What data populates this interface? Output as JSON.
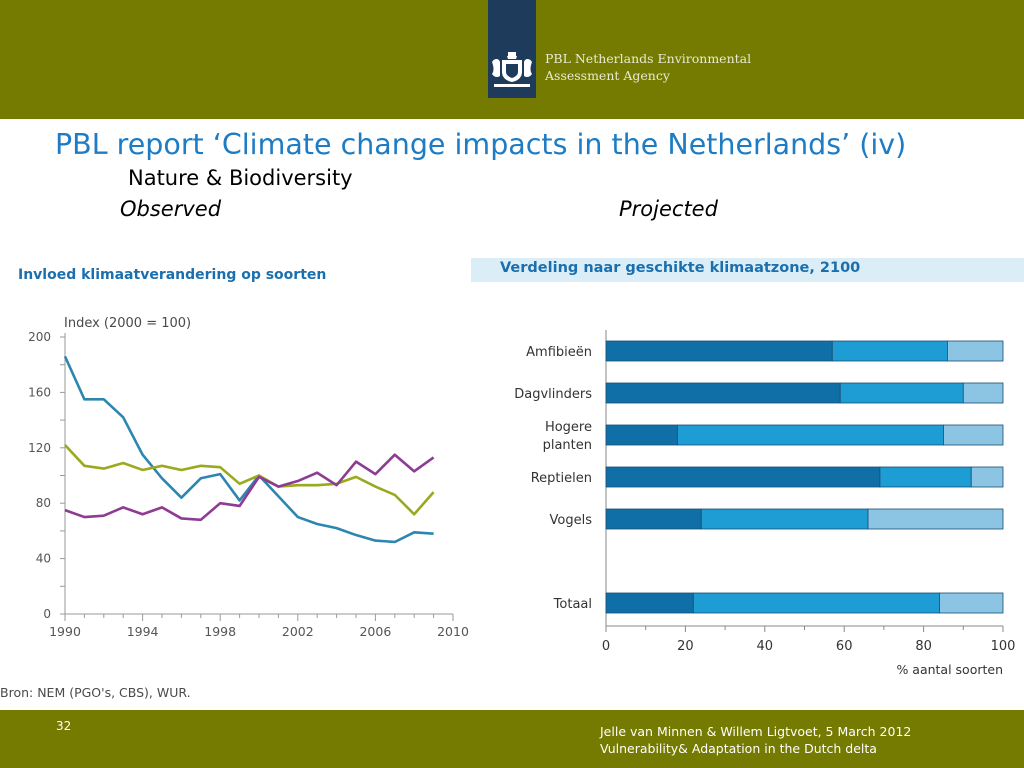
{
  "header": {
    "org_line1": "PBL Netherlands Environmental",
    "org_line2": "Assessment Agency"
  },
  "slide": {
    "title": "PBL report ‘Climate change impacts in the Netherlands’ (iv)",
    "subtitle": "Nature & Biodiversity",
    "label_left": "Observed",
    "label_right": "Projected"
  },
  "footer": {
    "page_number": "32",
    "line1": "Jelle van Minnen & Willem Ligtvoet, 5 March 2012",
    "line2": "Vulnerability& Adaptation in the Dutch delta"
  },
  "colors": {
    "bar": "#75790b",
    "brand_blue": "#1d7cc4",
    "line_blue": "#2d86b0",
    "line_olive": "#9aaa1c",
    "line_purple": "#8d3b93",
    "bar_dark": "#0f6fa6",
    "bar_mid": "#1d9dd3",
    "bar_light": "#8cc4e4"
  },
  "chart_data": [
    {
      "type": "line",
      "title": "Invloed klimaatverandering op soorten",
      "ylabel": "Index (2000 = 100)",
      "xlabel": "",
      "source": "Bron: NEM (PGO's, CBS), WUR.",
      "x_ticks": [
        "1990",
        "1994",
        "1998",
        "2002",
        "2006",
        "2010"
      ],
      "y_ticks": [
        "0",
        "40",
        "80",
        "120",
        "160",
        "200"
      ],
      "xlim": [
        1990,
        2010
      ],
      "ylim": [
        0,
        200
      ],
      "grid": false,
      "x": [
        1990,
        1991,
        1992,
        1993,
        1994,
        1995,
        1996,
        1997,
        1998,
        1999,
        2000,
        2001,
        2002,
        2003,
        2004,
        2005,
        2006,
        2007,
        2008,
        2009
      ],
      "series": [
        {
          "color": "#2d86b0",
          "values": [
            186,
            155,
            155,
            142,
            115,
            98,
            84,
            98,
            101,
            82,
            100,
            85,
            70,
            65,
            62,
            57,
            53,
            52,
            59,
            58
          ]
        },
        {
          "color": "#9aaa1c",
          "values": [
            122,
            107,
            105,
            109,
            104,
            107,
            104,
            107,
            106,
            94,
            100,
            92,
            93,
            93,
            94,
            99,
            92,
            86,
            72,
            88
          ]
        },
        {
          "color": "#8d3b93",
          "values": [
            75,
            70,
            71,
            77,
            72,
            77,
            69,
            68,
            80,
            78,
            99,
            92,
            96,
            102,
            93,
            110,
            101,
            115,
            103,
            113
          ]
        }
      ]
    },
    {
      "type": "bar",
      "orientation": "horizontal",
      "stacked": true,
      "title": "Verdeling naar geschikte klimaatzone, 2100",
      "xlabel": "% aantal soorten",
      "x_ticks": [
        "0",
        "20",
        "40",
        "60",
        "80",
        "100"
      ],
      "xlim": [
        0,
        100
      ],
      "categories": [
        "Amfibieën",
        "Dagvlinders",
        "Hogere planten",
        "Reptielen",
        "Vogels",
        "Totaal"
      ],
      "series": [
        {
          "color": "#0f6fa6",
          "values": [
            57,
            59,
            18,
            69,
            24,
            22
          ]
        },
        {
          "color": "#1d9dd3",
          "values": [
            29,
            31,
            67,
            23,
            42,
            62
          ]
        },
        {
          "color": "#8cc4e4",
          "values": [
            14,
            10,
            15,
            8,
            34,
            16
          ]
        }
      ]
    }
  ]
}
